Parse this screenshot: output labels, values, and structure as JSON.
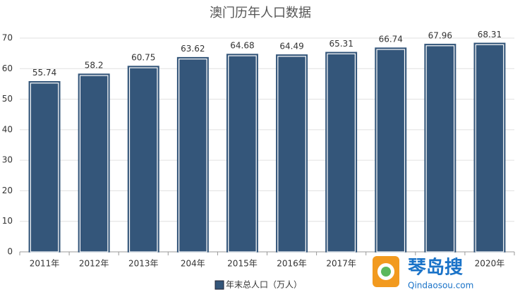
{
  "chart_data": {
    "type": "bar",
    "title": "澳门历年人口数据",
    "categories": [
      "2011年",
      "2012年",
      "2013年",
      "204年",
      "2015年",
      "2016年",
      "2017年",
      null,
      null,
      "2020年"
    ],
    "series": [
      {
        "name": "年末总人口（万人）",
        "color": "#34567a",
        "values": [
          55.74,
          58.2,
          60.75,
          63.62,
          64.68,
          64.49,
          65.31,
          66.74,
          67.96,
          68.31
        ]
      }
    ],
    "ylim": [
      0,
      70
    ],
    "yticks": [
      0,
      10,
      20,
      30,
      40,
      50,
      60,
      70
    ],
    "grid": true,
    "legend": "bottom"
  },
  "watermark": {
    "name": "琴岛搜",
    "url": "Qindaosou.com"
  }
}
